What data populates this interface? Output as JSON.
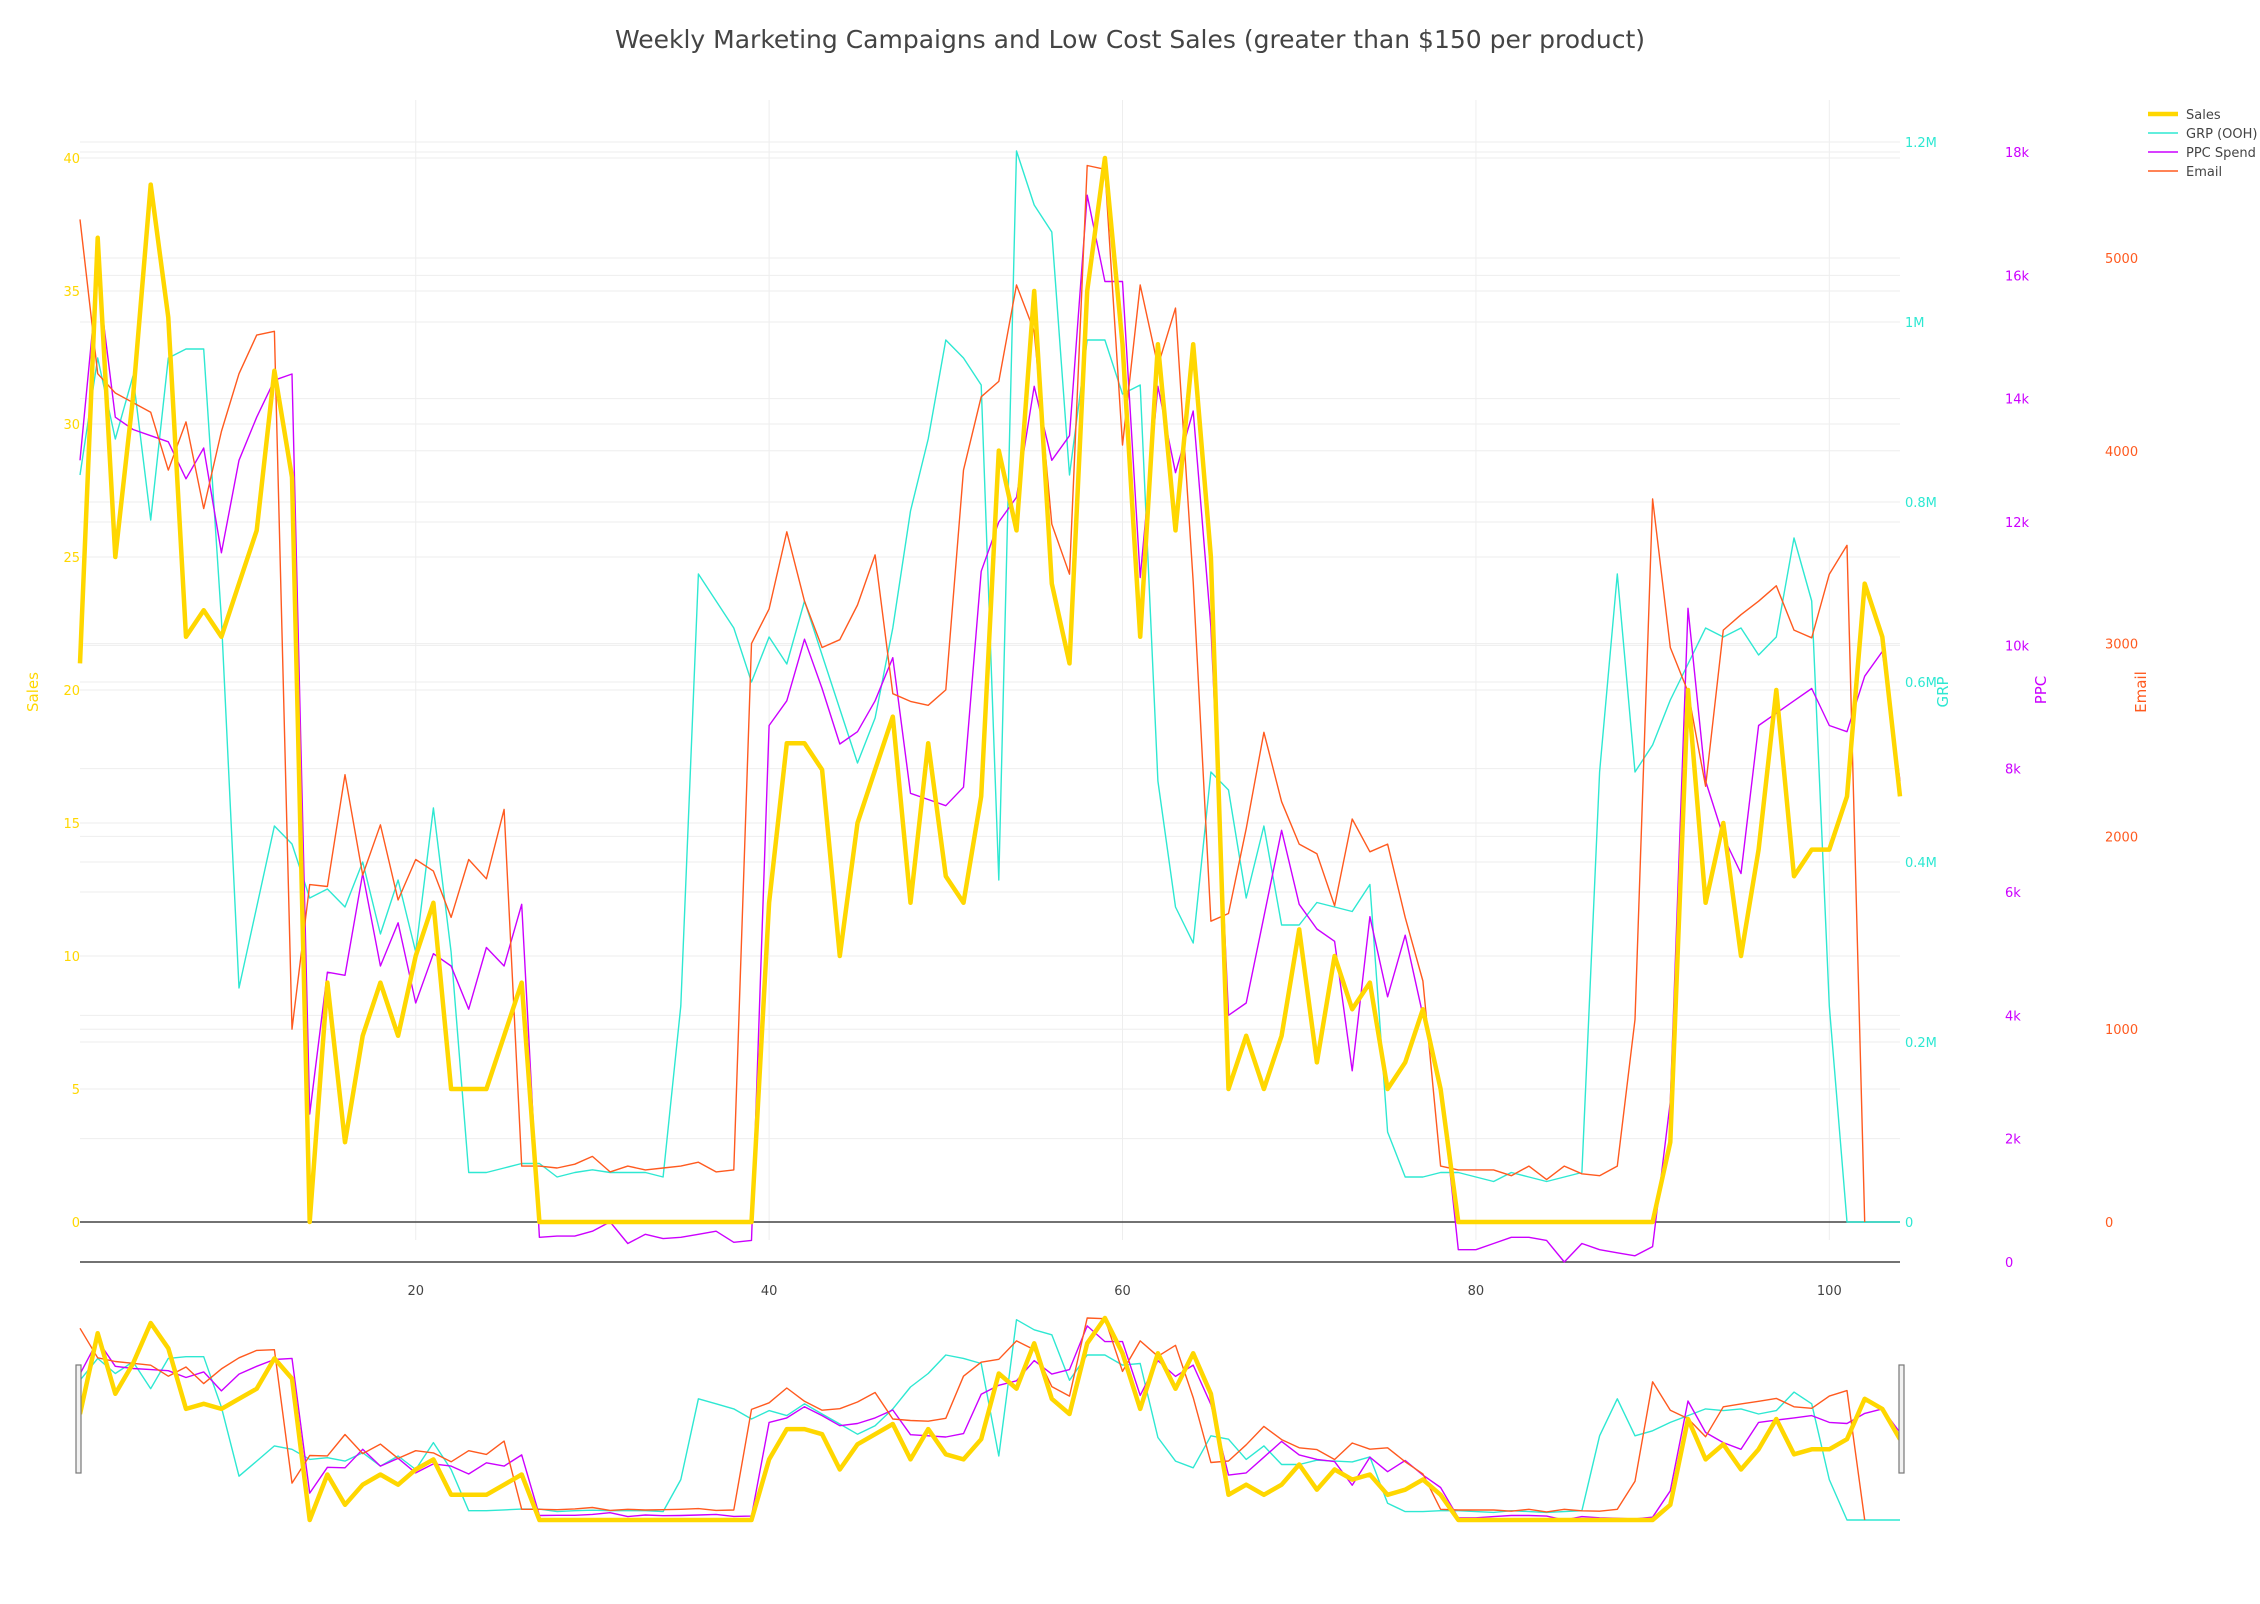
{
  "chart_data": {
    "type": "line",
    "title": "Weekly Marketing Campaigns and Low Cost Sales (greater than $150 per product)",
    "xlabel": "",
    "x_ticks": [
      20,
      40,
      60,
      80,
      100
    ],
    "xlim": [
      1,
      104
    ],
    "grid": true,
    "legend_position": "top-right",
    "range_slider": true,
    "axes": [
      {
        "id": "y_sales",
        "label": "Sales",
        "color": "#FFD700",
        "side": "left",
        "range": [
          0,
          40
        ],
        "ticks": [
          {
            "v": 0,
            "t": "0"
          },
          {
            "v": 5,
            "t": "5"
          },
          {
            "v": 10,
            "t": "10"
          },
          {
            "v": 15,
            "t": "15"
          },
          {
            "v": 20,
            "t": "20"
          },
          {
            "v": 25,
            "t": "25"
          },
          {
            "v": 30,
            "t": "30"
          },
          {
            "v": 35,
            "t": "35"
          },
          {
            "v": 40,
            "t": "40"
          }
        ]
      },
      {
        "id": "y_grp",
        "label": "GRP",
        "color": "#2EE8D2",
        "side": "right",
        "range": [
          0,
          1200000
        ],
        "ticks": [
          {
            "v": 0,
            "t": "0"
          },
          {
            "v": 200000,
            "t": "0.2M"
          },
          {
            "v": 400000,
            "t": "0.4M"
          },
          {
            "v": 600000,
            "t": "0.6M"
          },
          {
            "v": 800000,
            "t": "0.8M"
          },
          {
            "v": 1000000,
            "t": "1M"
          },
          {
            "v": 1200000,
            "t": "1.2M"
          }
        ]
      },
      {
        "id": "y_ppc",
        "label": "PPC",
        "color": "#CC00FF",
        "side": "right",
        "range": [
          0,
          18000
        ],
        "ticks": [
          {
            "v": 0,
            "t": "0"
          },
          {
            "v": 2000,
            "t": "2k"
          },
          {
            "v": 4000,
            "t": "4k"
          },
          {
            "v": 6000,
            "t": "6k"
          },
          {
            "v": 8000,
            "t": "8k"
          },
          {
            "v": 10000,
            "t": "10k"
          },
          {
            "v": 12000,
            "t": "12k"
          },
          {
            "v": 14000,
            "t": "14k"
          },
          {
            "v": 16000,
            "t": "16k"
          },
          {
            "v": 18000,
            "t": "18k"
          }
        ]
      },
      {
        "id": "y_email",
        "label": "Email",
        "color": "#FF5A1F",
        "side": "right",
        "range": [
          0,
          5000
        ],
        "ticks": [
          {
            "v": 0,
            "t": "0"
          },
          {
            "v": 1000,
            "t": "1000"
          },
          {
            "v": 2000,
            "t": "2000"
          },
          {
            "v": 3000,
            "t": "3000"
          },
          {
            "v": 4000,
            "t": "4000"
          },
          {
            "v": 5000,
            "t": "5000"
          }
        ]
      }
    ],
    "series": [
      {
        "name": "Sales",
        "axis": "y_sales",
        "color": "#FFD700",
        "values": [
          21,
          37,
          25,
          31,
          39,
          34,
          22,
          23,
          22,
          24,
          26,
          32,
          28,
          0,
          9,
          3,
          7,
          9,
          7,
          10,
          12,
          5,
          5,
          5,
          7,
          9,
          0,
          0,
          0,
          0,
          0,
          0,
          0,
          0,
          0,
          0,
          0,
          0,
          0,
          12,
          18,
          18,
          17,
          10,
          15,
          17,
          19,
          12,
          18,
          13,
          12,
          16,
          29,
          26,
          35,
          24,
          21,
          35,
          40,
          33,
          22,
          33,
          26,
          33,
          25,
          5,
          7,
          5,
          7,
          11,
          6,
          10,
          8,
          9,
          5,
          6,
          8,
          5,
          0,
          0,
          0,
          0,
          0,
          0,
          0,
          0,
          0,
          0,
          0,
          0,
          3,
          20,
          12,
          15,
          10,
          14,
          20,
          13,
          14,
          14,
          16,
          24,
          22,
          16
        ]
      },
      {
        "name": "GRP (OOH)",
        "axis": "y_grp",
        "color": "#2EE8D2",
        "values": [
          830000,
          960000,
          870000,
          940000,
          780000,
          960000,
          970000,
          970000,
          670000,
          260000,
          350000,
          440000,
          420000,
          360000,
          370000,
          350000,
          400000,
          320000,
          380000,
          300000,
          460000,
          300000,
          55000,
          55000,
          60000,
          65000,
          65000,
          50000,
          55000,
          58000,
          55000,
          55000,
          55000,
          50000,
          240000,
          720000,
          690000,
          660000,
          600000,
          650000,
          620000,
          690000,
          630000,
          570000,
          510000,
          560000,
          660000,
          790000,
          870000,
          980000,
          960000,
          930000,
          380000,
          1190000,
          1130000,
          1100000,
          830000,
          980000,
          980000,
          920000,
          930000,
          490000,
          350000,
          310000,
          500000,
          480000,
          360000,
          440000,
          330000,
          330000,
          355000,
          350000,
          345000,
          375000,
          100000,
          50000,
          50000,
          55000,
          55000,
          50000,
          45000,
          55000,
          50000,
          45000,
          50000,
          55000,
          500000,
          720000,
          500000,
          530000,
          580000,
          620000,
          660000,
          650000,
          660000,
          630000,
          650000,
          760000,
          690000,
          240000,
          0,
          0,
          0,
          0
        ]
      },
      {
        "name": "PPC Spend",
        "axis": "y_ppc",
        "color": "#CC00FF",
        "values": [
          13000,
          16000,
          13700,
          13500,
          13400,
          13300,
          12700,
          13200,
          11500,
          13000,
          13700,
          14300,
          14400,
          2400,
          4700,
          4650,
          6300,
          4800,
          5500,
          4200,
          5000,
          4800,
          4100,
          5100,
          4800,
          5800,
          400,
          420,
          420,
          500,
          650,
          300,
          450,
          380,
          400,
          450,
          500,
          320,
          350,
          8700,
          9100,
          10100,
          9300,
          8400,
          8600,
          9100,
          9800,
          7600,
          7500,
          7400,
          7700,
          11200,
          12000,
          12400,
          14200,
          13000,
          13400,
          17300,
          15900,
          15900,
          11100,
          14200,
          12800,
          13800,
          10300,
          4000,
          4200,
          5600,
          7000,
          5800,
          5400,
          5200,
          3100,
          5600,
          4300,
          5300,
          4000,
          2900,
          200,
          200,
          300,
          400,
          400,
          350,
          0,
          300,
          200,
          150,
          100,
          250,
          2600,
          10600,
          7800,
          6900,
          6300,
          8700,
          8900,
          9100,
          9300,
          8700,
          8600,
          9500,
          9900,
          7800
        ]
      },
      {
        "name": "Email",
        "axis": "y_email",
        "color": "#FF5A1F",
        "values": [
          5200,
          4400,
          4300,
          4250,
          4200,
          3900,
          4150,
          3700,
          4100,
          4400,
          4600,
          4620,
          1000,
          1750,
          1740,
          2320,
          1800,
          2060,
          1670,
          1880,
          1820,
          1580,
          1880,
          1780,
          2140,
          290,
          290,
          280,
          300,
          340,
          260,
          290,
          270,
          280,
          290,
          310,
          260,
          270,
          3000,
          3180,
          3580,
          3220,
          2980,
          3020,
          3200,
          3460,
          2740,
          2700,
          2680,
          2760,
          3900,
          4280,
          4360,
          4860,
          4620,
          3620,
          3360,
          5480,
          5460,
          4030,
          4860,
          4440,
          4740,
          3320,
          1560,
          1600,
          2040,
          2540,
          2180,
          1960,
          1910,
          1640,
          2090,
          1920,
          1960,
          1580,
          1250,
          290,
          270,
          270,
          270,
          240,
          290,
          220,
          290,
          250,
          240,
          290,
          1050,
          3750,
          2980,
          2750,
          2260,
          3070,
          3150,
          3220,
          3300,
          3070,
          3030,
          3360,
          3510,
          0
        ]
      }
    ]
  }
}
